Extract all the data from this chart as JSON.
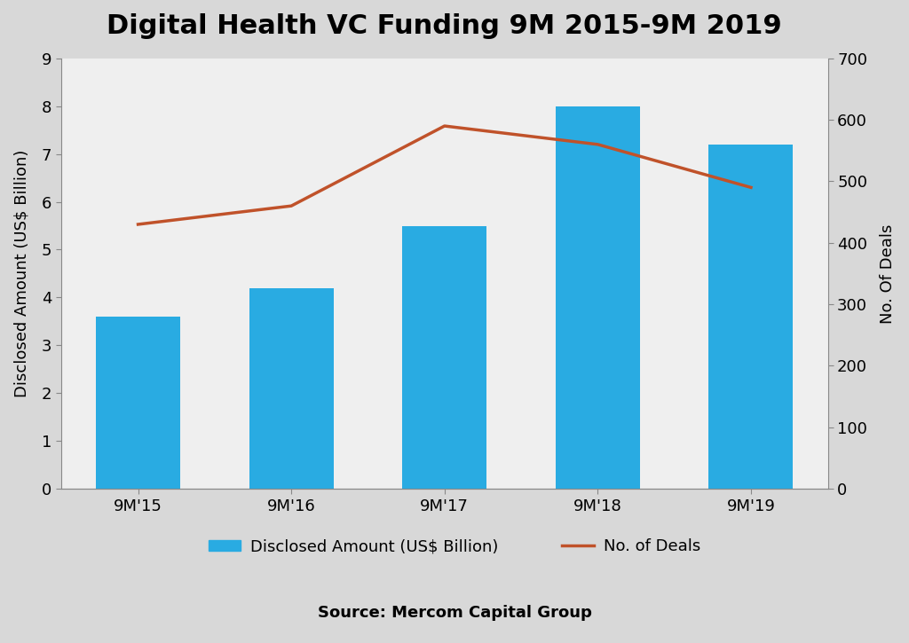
{
  "title": "Digital Health VC Funding 9M 2015-9M 2019",
  "categories": [
    "9M'15",
    "9M'16",
    "9M'17",
    "9M'18",
    "9M'19"
  ],
  "bar_values": [
    3.6,
    4.2,
    5.5,
    8.0,
    7.2
  ],
  "line_values": [
    430,
    460,
    590,
    560,
    490
  ],
  "bar_color": "#29abe2",
  "line_color": "#c0522a",
  "ylabel_left": "Disclosed Amount (US$ Billion)",
  "ylabel_right": "No. Of Deals",
  "ylim_left": [
    0,
    9
  ],
  "ylim_right": [
    0,
    700
  ],
  "yticks_left": [
    0,
    1,
    2,
    3,
    4,
    5,
    6,
    7,
    8,
    9
  ],
  "yticks_right": [
    0,
    100,
    200,
    300,
    400,
    500,
    600,
    700
  ],
  "legend_bar_label": "Disclosed Amount (US$ Billion)",
  "legend_line_label": "No. of Deals",
  "source_text": "Source: Mercom Capital Group",
  "outer_bg_color": "#d8d8d8",
  "plot_bg_color": "#efefef",
  "title_fontsize": 22,
  "axis_label_fontsize": 13,
  "tick_fontsize": 13,
  "legend_fontsize": 13,
  "source_fontsize": 13
}
